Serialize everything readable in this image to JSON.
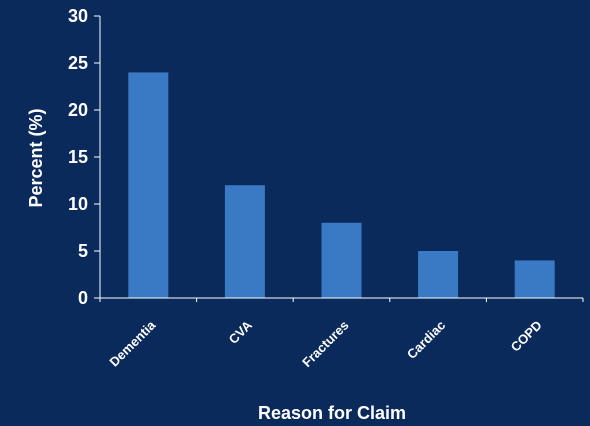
{
  "chart_data": {
    "type": "bar",
    "categories": [
      "Dementia",
      "CVA",
      "Fractures",
      "Cardiac",
      "COPD"
    ],
    "values": [
      24,
      12,
      8,
      5,
      4
    ],
    "title": "",
    "xlabel": "Reason for Claim",
    "ylabel": "Percent (%)",
    "ylim": [
      0,
      30
    ],
    "yticks": [
      0,
      5,
      10,
      15,
      20,
      25,
      30
    ],
    "grid": false,
    "colors": {
      "background": "#0a2a5c",
      "bar": "#3a79c3",
      "axis": "#ffffff",
      "text": "#ffffff"
    }
  }
}
